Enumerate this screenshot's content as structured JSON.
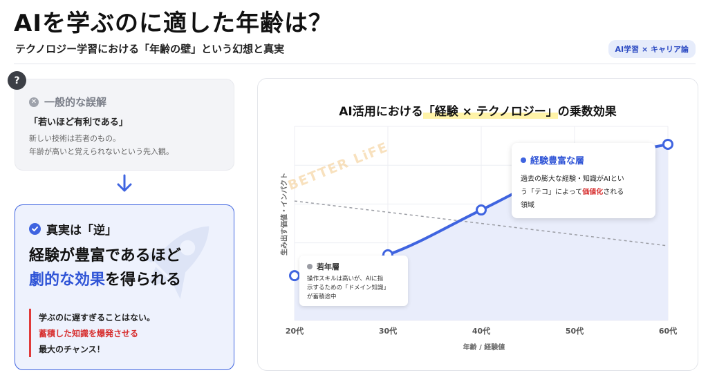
{
  "header": {
    "title": "AIを学ぶのに適した年齢は？",
    "subtitle": "テクノロジー学習における「年齢の壁」という幻想と真実",
    "tag": "AI学習 × キャリア論"
  },
  "misconception": {
    "badge": "?",
    "heading": "一般的な誤解",
    "quote": "「若いほど有利である」",
    "line1": "新しい技術は若者のもの。",
    "line2": "年齢が高いと覚えられないという先入観。"
  },
  "truth": {
    "heading": "真実は「逆」",
    "big_line1": "経験が豊富であるほど",
    "big_line2_blue": "劇的な効果",
    "big_line2_rest": "を得られる",
    "note_line1": "学ぶのに遅すぎることはない。",
    "note_line2": "蓄積した知識を爆発させる",
    "note_line3": "最大のチャンス！"
  },
  "colors": {
    "accent": "#3f64e0",
    "red": "#d72f2f",
    "area": "#e9edfb",
    "highlight": "#fff3a8"
  },
  "chart_data": {
    "type": "line",
    "title_prefix": "AI活用における",
    "title_highlight": "「経験 × テクノロジー」",
    "title_suffix": "の乗数効果",
    "xlabel": "年齢 / 経験値",
    "ylabel": "生み出す価値・インパクト",
    "categories": [
      "20代",
      "30代",
      "40代",
      "50代",
      "60代"
    ],
    "series": [
      {
        "values": [
          1.5,
          2.2,
          3.7,
          5.2,
          5.9
        ],
        "style": "solid",
        "color": "#3f64e0"
      },
      {
        "values": [
          4.0,
          null,
          null,
          null,
          2.5
        ],
        "style": "dashed",
        "color": "#9a9ca3"
      }
    ],
    "ylim": [
      0,
      6.5
    ],
    "grid": true,
    "watermark": "BETTER LiFE",
    "annotations": {
      "experienced": {
        "title": "経験豊富な層",
        "line1": "過去の膨大な経験・知識がAIとい",
        "line2_pre": "う「テコ」によって",
        "line2_red": "価値化",
        "line2_post": "される",
        "line3": "領域"
      },
      "young": {
        "title": "若年層",
        "line1": "操作スキルは高いが、AIに指",
        "line2": "示するための「ドメイン知識」",
        "line3": "が蓄積途中"
      }
    }
  }
}
